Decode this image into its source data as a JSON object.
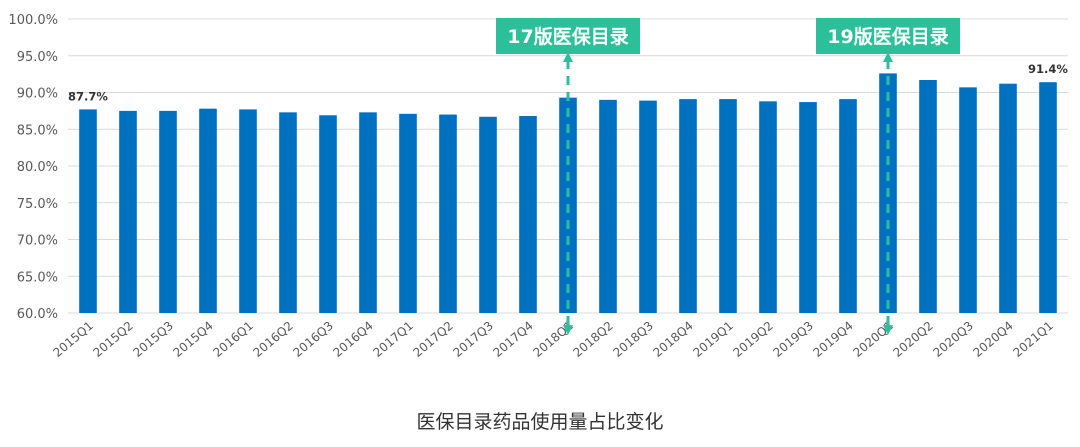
{
  "caption": "医保目录药品使用量占比变化",
  "chart_data": {
    "type": "bar",
    "categories": [
      "2015Q1",
      "2015Q2",
      "2015Q3",
      "2015Q4",
      "2016Q1",
      "2016Q2",
      "2016Q3",
      "2016Q4",
      "2017Q1",
      "2017Q2",
      "2017Q3",
      "2017Q4",
      "2018Q1",
      "2018Q2",
      "2018Q3",
      "2018Q4",
      "2019Q1",
      "2019Q2",
      "2019Q3",
      "2019Q4",
      "2020Q1",
      "2020Q2",
      "2020Q3",
      "2020Q4",
      "2021Q1"
    ],
    "values": [
      87.7,
      87.5,
      87.5,
      87.8,
      87.7,
      87.3,
      86.9,
      87.3,
      87.1,
      87.0,
      86.7,
      86.8,
      89.3,
      89.0,
      88.9,
      89.1,
      89.1,
      88.8,
      88.7,
      89.1,
      92.6,
      91.7,
      90.7,
      91.2,
      91.4
    ],
    "data_labels": [
      {
        "category": "2015Q1",
        "text": "87.7%"
      },
      {
        "category": "2021Q1",
        "text": "91.4%"
      }
    ],
    "ylim": [
      60,
      100
    ],
    "yticks": [
      "60.0%",
      "65.0%",
      "70.0%",
      "75.0%",
      "80.0%",
      "85.0%",
      "90.0%",
      "95.0%",
      "100.0%"
    ],
    "annotations": [
      {
        "category": "2018Q1",
        "text": "17版医保目录"
      },
      {
        "category": "2020Q1",
        "text": "19版医保目录"
      }
    ],
    "bar_color": "#0070c0",
    "annotation_color": "#2bbf9a",
    "grid": true
  }
}
